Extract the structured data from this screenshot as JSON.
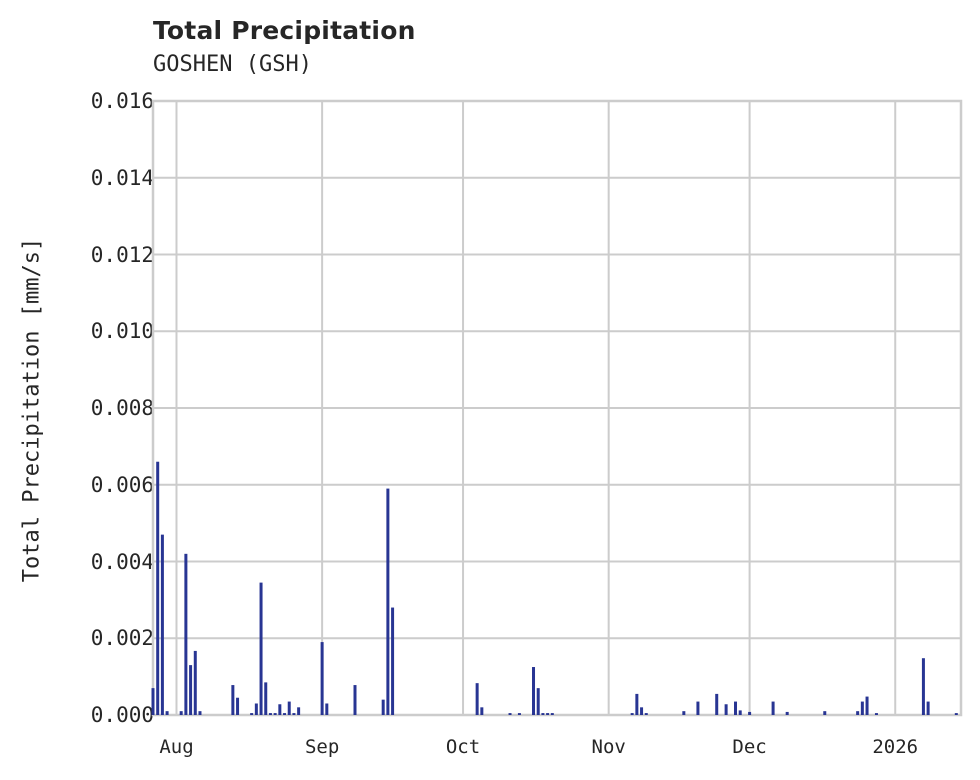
{
  "header": {
    "title": "Total Precipitation",
    "subtitle": "GOSHEN (GSH)"
  },
  "colors": {
    "series": "#283593",
    "grid": "#cccccc",
    "text": "#262626"
  },
  "chart_data": {
    "type": "bar",
    "title": "Total Precipitation",
    "subtitle": "GOSHEN (GSH)",
    "xlabel": "",
    "ylabel": "Total Precipitation [mm/s]",
    "ylim": [
      0,
      0.016
    ],
    "yticks": [
      "0.000",
      "0.002",
      "0.004",
      "0.006",
      "0.008",
      "0.010",
      "0.012",
      "0.014",
      "0.016"
    ],
    "xticks": [
      "Aug",
      "Sep",
      "Oct",
      "Nov",
      "Dec",
      "2026"
    ],
    "grid": true,
    "legend": null,
    "x_range": [
      "2025-07-27",
      "2026-01-15"
    ],
    "series": [
      {
        "name": "Total Precipitation",
        "points": [
          {
            "date": "2025-07-27",
            "value": 0.0007
          },
          {
            "date": "2025-07-28",
            "value": 0.0066
          },
          {
            "date": "2025-07-29",
            "value": 0.0047
          },
          {
            "date": "2025-07-30",
            "value": 0.0001
          },
          {
            "date": "2025-08-02",
            "value": 0.0001
          },
          {
            "date": "2025-08-03",
            "value": 0.0042
          },
          {
            "date": "2025-08-04",
            "value": 0.0013
          },
          {
            "date": "2025-08-05",
            "value": 0.00167
          },
          {
            "date": "2025-08-06",
            "value": 0.0001
          },
          {
            "date": "2025-08-13",
            "value": 0.00078
          },
          {
            "date": "2025-08-14",
            "value": 0.00045
          },
          {
            "date": "2025-08-17",
            "value": 5e-05
          },
          {
            "date": "2025-08-18",
            "value": 0.0003
          },
          {
            "date": "2025-08-19",
            "value": 0.00345
          },
          {
            "date": "2025-08-20",
            "value": 0.00085
          },
          {
            "date": "2025-08-21",
            "value": 5e-05
          },
          {
            "date": "2025-08-22",
            "value": 5e-05
          },
          {
            "date": "2025-08-23",
            "value": 0.00028
          },
          {
            "date": "2025-08-24",
            "value": 5e-05
          },
          {
            "date": "2025-08-25",
            "value": 0.00035
          },
          {
            "date": "2025-08-26",
            "value": 5e-05
          },
          {
            "date": "2025-08-27",
            "value": 0.0002
          },
          {
            "date": "2025-09-01",
            "value": 0.0019
          },
          {
            "date": "2025-09-02",
            "value": 0.0003
          },
          {
            "date": "2025-09-08",
            "value": 0.00078
          },
          {
            "date": "2025-09-14",
            "value": 0.0004
          },
          {
            "date": "2025-09-15",
            "value": 0.0059
          },
          {
            "date": "2025-09-16",
            "value": 0.0028
          },
          {
            "date": "2025-10-04",
            "value": 0.00083
          },
          {
            "date": "2025-10-05",
            "value": 0.0002
          },
          {
            "date": "2025-10-11",
            "value": 5e-05
          },
          {
            "date": "2025-10-13",
            "value": 5e-05
          },
          {
            "date": "2025-10-16",
            "value": 0.00125
          },
          {
            "date": "2025-10-17",
            "value": 0.0007
          },
          {
            "date": "2025-10-18",
            "value": 5e-05
          },
          {
            "date": "2025-10-19",
            "value": 5e-05
          },
          {
            "date": "2025-10-20",
            "value": 5e-05
          },
          {
            "date": "2025-11-06",
            "value": 5e-05
          },
          {
            "date": "2025-11-07",
            "value": 0.00055
          },
          {
            "date": "2025-11-08",
            "value": 0.0002
          },
          {
            "date": "2025-11-09",
            "value": 5e-05
          },
          {
            "date": "2025-11-17",
            "value": 0.0001
          },
          {
            "date": "2025-11-20",
            "value": 0.00035
          },
          {
            "date": "2025-11-24",
            "value": 0.00055
          },
          {
            "date": "2025-11-26",
            "value": 0.00028
          },
          {
            "date": "2025-11-28",
            "value": 0.00035
          },
          {
            "date": "2025-11-29",
            "value": 0.00012
          },
          {
            "date": "2025-12-01",
            "value": 8e-05
          },
          {
            "date": "2025-12-06",
            "value": 0.00035
          },
          {
            "date": "2025-12-09",
            "value": 8e-05
          },
          {
            "date": "2025-12-17",
            "value": 0.0001
          },
          {
            "date": "2025-12-24",
            "value": 0.0001
          },
          {
            "date": "2025-12-25",
            "value": 0.00035
          },
          {
            "date": "2025-12-26",
            "value": 0.00048
          },
          {
            "date": "2025-12-28",
            "value": 5e-05
          },
          {
            "date": "2026-01-07",
            "value": 0.00148
          },
          {
            "date": "2026-01-08",
            "value": 0.00035
          },
          {
            "date": "2026-01-14",
            "value": 5e-05
          }
        ]
      }
    ]
  }
}
